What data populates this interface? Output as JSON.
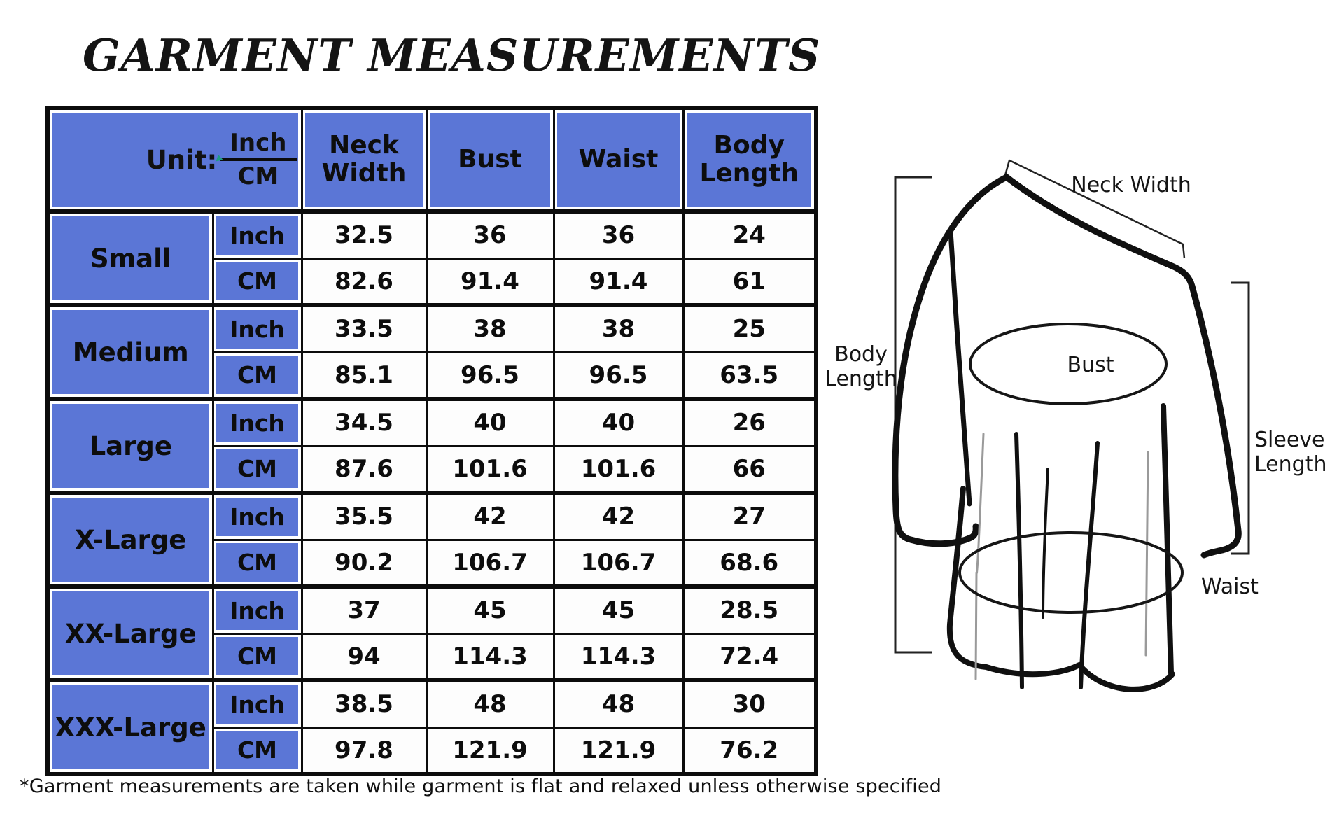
{
  "title": "GARMENT MEASUREMENTS",
  "footnote": "*Garment measurements are taken while garment is flat and relaxed unless otherwise specified",
  "colors": {
    "header_blue": "#5b76d6",
    "border_black": "#0c0c0c",
    "fraction_arrow_teal": "#1e9c85"
  },
  "table": {
    "unit_label": "Unit:",
    "unit_fraction": {
      "top": "Inch",
      "bottom": "CM"
    },
    "columns": [
      "Neck Width",
      "Bust",
      "Waist",
      "Body Length"
    ],
    "row_unit_labels": {
      "inch": "Inch",
      "cm": "CM"
    },
    "rows": [
      {
        "size": "Small",
        "inch": [
          "32.5",
          "36",
          "36",
          "24"
        ],
        "cm": [
          "82.6",
          "91.4",
          "91.4",
          "61"
        ]
      },
      {
        "size": "Medium",
        "inch": [
          "33.5",
          "38",
          "38",
          "25"
        ],
        "cm": [
          "85.1",
          "96.5",
          "96.5",
          "63.5"
        ]
      },
      {
        "size": "Large",
        "inch": [
          "34.5",
          "40",
          "40",
          "26"
        ],
        "cm": [
          "87.6",
          "101.6",
          "101.6",
          "66"
        ]
      },
      {
        "size": "X-Large",
        "inch": [
          "35.5",
          "42",
          "42",
          "27"
        ],
        "cm": [
          "90.2",
          "106.7",
          "106.7",
          "68.6"
        ]
      },
      {
        "size": "XX-Large",
        "inch": [
          "37",
          "45",
          "45",
          "28.5"
        ],
        "cm": [
          "94",
          "114.3",
          "114.3",
          "72.4"
        ]
      },
      {
        "size": "XXX-Large",
        "inch": [
          "38.5",
          "48",
          "48",
          "30"
        ],
        "cm": [
          "97.8",
          "121.9",
          "121.9",
          "76.2"
        ]
      }
    ]
  },
  "diagram": {
    "labels": {
      "neck_width": "Neck Width",
      "bust": "Bust",
      "waist": "Waist",
      "body_length_line1": "Body",
      "body_length_line2": "Length",
      "sleeve_length_line1": "Sleeve",
      "sleeve_length_line2": "Length"
    }
  }
}
